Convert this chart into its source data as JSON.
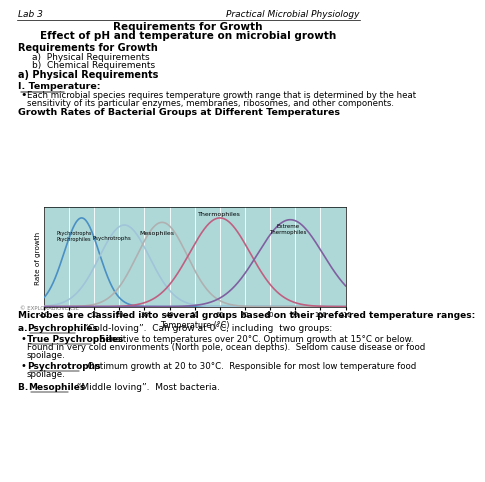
{
  "page_title_left": "Lab 3",
  "page_title_right": "Practical Microbial Physiology",
  "doc_title_1": "Requirements for Growth",
  "doc_title_2": "Effect of pH and temperature on microbial growth",
  "section1_header": "Requirements for Growth",
  "section1_items": [
    "Physical Requirements",
    "Chemical Requirements"
  ],
  "section2_header": "a) Physical Requirements",
  "section3_header": "I. Temperature:",
  "bullet1_line1": "Each microbial species requires temperature growth range that is determined by the heat",
  "bullet1_line2": "sensitivity of its particular enzymes, membranes, ribosomes, and other components.",
  "chart_title": "Growth Rates of Bacterial Groups at Different Temperatures",
  "xlabel": "Temperature (°C)",
  "ylabel": "Rate of growth",
  "x_ticks": [
    -10,
    0,
    10,
    20,
    30,
    40,
    50,
    60,
    70,
    80,
    90,
    100,
    110
  ],
  "bg_color": "#aed8d8",
  "curve_colors": {
    "psychrophile": "#4a90c4",
    "psychrotroph": "#a0c4d8",
    "mesophile": "#b0b0b0",
    "thermophile": "#c06080",
    "extreme_thermophile": "#8060a0"
  },
  "watermark": "© EXPLORABIOVERSE",
  "section4_bold": "Microbes are classified into several groups based on their preferred temperature ranges:",
  "section5_a_label": "Psychrophiles",
  "section5_a_text": ": “Cold-loving”.  Can grow at 0°C, including  two groups:",
  "bullet2_label": "True Psychrophiles",
  "bullet2_line1": ": Sensitive to temperatures over 20°C. Optimum growth at 15°C or below.",
  "bullet2_line2": "Found in very cold environments (North pole, ocean depths).  Seldom cause disease or food",
  "bullet2_line3": "spoilage.",
  "bullet3_label": "Psychrotrophs",
  "bullet3_line1": ": Optimum growth at 20 to 30°C.  Responsible for most low temperature food",
  "bullet3_line2": "spoilage.",
  "section5_b_label": "Mesophiles",
  "section5_b_text": ": “Middle loving”.  Most bacteria."
}
